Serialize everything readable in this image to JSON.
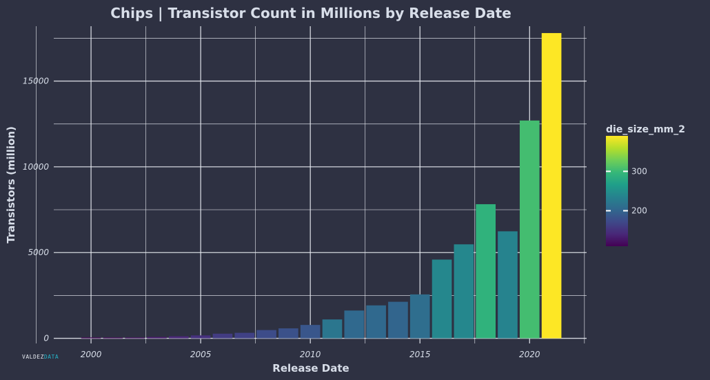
{
  "chart_data": {
    "type": "bar",
    "title": "Chips | Transistor Count in Millions by Release Date",
    "xlabel": "Release Date",
    "ylabel": "Transistors (million)",
    "xlim": [
      1998.3,
      2022.6
    ],
    "ylim": [
      -300,
      18200
    ],
    "x_ticks": [
      2000,
      2005,
      2010,
      2015,
      2020
    ],
    "y_ticks": [
      0,
      5000,
      10000,
      15000
    ],
    "grid": true,
    "legend": {
      "title": "die_size_mm_2",
      "position": "right",
      "type": "colorbar",
      "ticks": [
        200,
        300
      ],
      "range": [
        110,
        390
      ]
    },
    "bars": [
      {
        "x": 2000,
        "value": 20,
        "die_size_mm_2": 110
      },
      {
        "x": 2001,
        "value": 30,
        "die_size_mm_2": 115
      },
      {
        "x": 2002,
        "value": 50,
        "die_size_mm_2": 120
      },
      {
        "x": 2003,
        "value": 80,
        "die_size_mm_2": 130
      },
      {
        "x": 2004,
        "value": 120,
        "die_size_mm_2": 140
      },
      {
        "x": 2005,
        "value": 170,
        "die_size_mm_2": 150
      },
      {
        "x": 2006,
        "value": 270,
        "die_size_mm_2": 160
      },
      {
        "x": 2007,
        "value": 320,
        "die_size_mm_2": 165
      },
      {
        "x": 2008,
        "value": 480,
        "die_size_mm_2": 175
      },
      {
        "x": 2009,
        "value": 580,
        "die_size_mm_2": 180
      },
      {
        "x": 2010,
        "value": 780,
        "die_size_mm_2": 185
      },
      {
        "x": 2011,
        "value": 1100,
        "die_size_mm_2": 220
      },
      {
        "x": 2012,
        "value": 1620,
        "die_size_mm_2": 205
      },
      {
        "x": 2013,
        "value": 1920,
        "die_size_mm_2": 205
      },
      {
        "x": 2014,
        "value": 2130,
        "die_size_mm_2": 200
      },
      {
        "x": 2015,
        "value": 2560,
        "die_size_mm_2": 210
      },
      {
        "x": 2016,
        "value": 4590,
        "die_size_mm_2": 240
      },
      {
        "x": 2017,
        "value": 5480,
        "die_size_mm_2": 240
      },
      {
        "x": 2018,
        "value": 7820,
        "die_size_mm_2": 290
      },
      {
        "x": 2019,
        "value": 6240,
        "die_size_mm_2": 235
      },
      {
        "x": 2020,
        "value": 12700,
        "die_size_mm_2": 305
      },
      {
        "x": 2021,
        "value": 17800,
        "die_size_mm_2": 390
      }
    ]
  },
  "watermark": {
    "part1": "VALDEZ",
    "part2": "DATA"
  },
  "colors": {
    "background": "#2e3142",
    "grid": "#e5e9f0",
    "text": "#d8dee9",
    "viridis": [
      "#440154",
      "#482878",
      "#3e4989",
      "#31688e",
      "#26828e",
      "#1f9e89",
      "#35b779",
      "#6ece58",
      "#b5de2b",
      "#fde725"
    ]
  }
}
